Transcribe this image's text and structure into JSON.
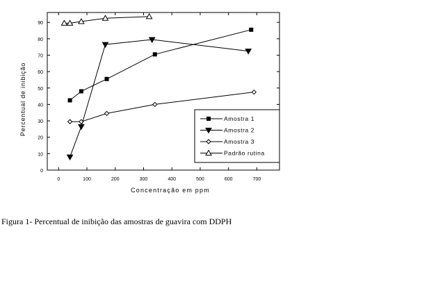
{
  "chart_data": {
    "type": "line",
    "title": "",
    "xlabel": "Concentração em ppm",
    "ylabel": "Percentual de inibição",
    "xlim": [
      -40,
      780
    ],
    "ylim": [
      0,
      96
    ],
    "xticks": [
      0,
      100,
      200,
      300,
      400,
      500,
      600,
      700
    ],
    "yticks": [
      0,
      10,
      20,
      30,
      40,
      50,
      60,
      70,
      80,
      90
    ],
    "grid": false,
    "legend_position": "lower-right",
    "series": [
      {
        "name": "Amostra 1",
        "marker": "square-filled",
        "points": [
          [
            40,
            42.5
          ],
          [
            80,
            48
          ],
          [
            170,
            55.5
          ],
          [
            340,
            70.5
          ],
          [
            680,
            85.5
          ]
        ]
      },
      {
        "name": "Amostra 2",
        "marker": "triangle-down-filled",
        "points": [
          [
            40,
            8
          ],
          [
            80,
            26.5
          ],
          [
            165,
            76.5
          ],
          [
            330,
            79.5
          ],
          [
            670,
            72.5
          ]
        ]
      },
      {
        "name": "Amostra 3",
        "marker": "diamond-open",
        "points": [
          [
            40,
            29.5
          ],
          [
            80,
            29.5
          ],
          [
            170,
            34.5
          ],
          [
            340,
            40
          ],
          [
            690,
            47.5
          ]
        ]
      },
      {
        "name": "Padrão rutina",
        "marker": "triangle-up-open",
        "points": [
          [
            20,
            89.5
          ],
          [
            40,
            89.5
          ],
          [
            80,
            90.5
          ],
          [
            165,
            92.5
          ],
          [
            320,
            93.5
          ]
        ]
      }
    ]
  },
  "caption": "Figura 1- Percentual de inibição das amostras de guavira com DDPH"
}
